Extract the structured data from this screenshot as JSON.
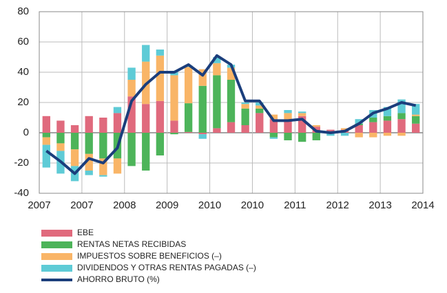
{
  "chart_data": {
    "type": "bar",
    "categories": [
      null,
      null,
      null,
      null,
      null,
      null,
      null,
      null,
      null,
      null,
      null,
      null,
      null,
      null,
      null,
      null,
      null,
      null,
      null,
      null,
      null,
      null,
      null,
      null,
      null,
      null,
      null
    ],
    "xtick_labels": [
      "2007",
      "2007",
      "2008",
      "2009",
      "2010",
      "2010",
      "2011",
      "2012",
      "2013",
      "2014"
    ],
    "stacked": true,
    "grid": true,
    "ylim": [
      -40,
      80
    ],
    "yticks": [
      -40,
      -20,
      0,
      20,
      40,
      60,
      80
    ],
    "series": [
      {
        "name": "EBE",
        "color": "#e06a7d",
        "values": [
          11,
          8,
          5,
          11,
          10,
          13,
          24,
          19,
          21,
          8,
          0.5,
          -1,
          3,
          7,
          5,
          13,
          9,
          8,
          11,
          4,
          2,
          2,
          5,
          7,
          8,
          9,
          6
        ]
      },
      {
        "name": "RENTAS NETAS RECIBIDAS",
        "color": "#4db45a",
        "values": [
          -3,
          -7,
          -11,
          -14,
          -17,
          -17,
          -22,
          -25,
          -15,
          -1,
          19,
          31,
          35,
          28,
          11,
          3,
          -3,
          -5,
          -6,
          -5,
          0,
          0,
          1,
          3,
          3,
          4,
          5
        ]
      },
      {
        "name": "IMPUESTOS SOBRE BENEFICIOS (–)",
        "color": "#f9b567",
        "values": [
          -5,
          -5,
          -11,
          -11,
          -11,
          -10,
          11,
          28,
          30,
          30,
          24,
          11,
          8,
          8,
          3,
          2,
          3,
          5,
          2,
          1,
          0,
          1,
          -3,
          -3,
          -2,
          -2,
          1
        ]
      },
      {
        "name": "DIVIDENDOS Y OTRAS RENTAS PAGADAS (–)",
        "color": "#5ecbd6",
        "values": [
          -15,
          -15,
          -10,
          -3,
          -1,
          4,
          8,
          11,
          4,
          2,
          1,
          -3,
          4,
          2,
          1,
          2,
          -1,
          2,
          1,
          0,
          -2,
          -2,
          3,
          5,
          6,
          9,
          7
        ]
      },
      {
        "name": "AHORRO BRUTO (%)",
        "color": "#1b3e7c",
        "type": "line",
        "values": [
          -12,
          -19,
          -27,
          -17,
          -20,
          -10,
          21,
          32,
          40,
          40,
          45,
          38,
          51,
          45,
          21,
          21,
          8,
          8,
          9,
          1,
          0,
          1,
          6,
          13,
          16,
          20,
          18
        ]
      }
    ]
  }
}
